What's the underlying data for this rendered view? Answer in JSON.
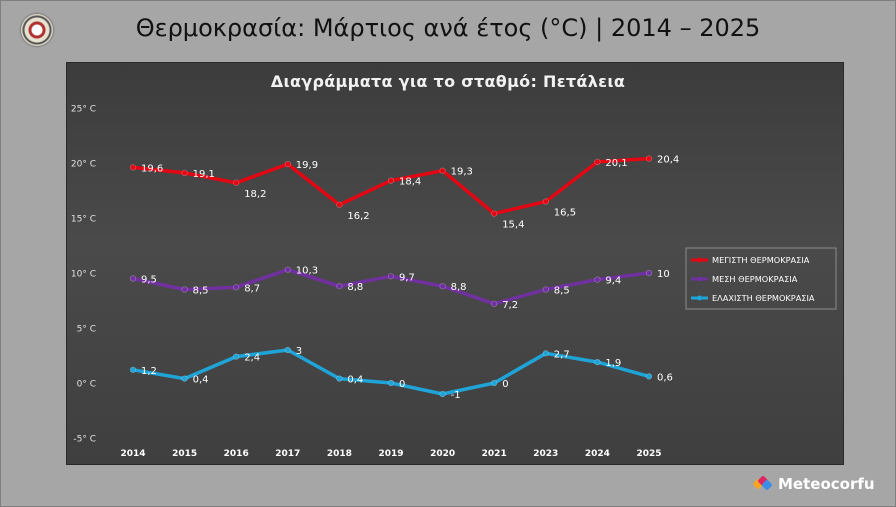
{
  "page": {
    "title": "Θερμοκρασία: Μάρτιος ανά έτος (°C) | 2014 – 2025",
    "brand": "Meteocorfu"
  },
  "colors": {
    "page_bg": "#a6a6a6",
    "plot_bg": "#404040",
    "max": "#e30613",
    "mean": "#7030a0",
    "min": "#1fa4d8"
  },
  "chart_data": {
    "type": "line",
    "title": "Διαγράμματα για το σταθμό: Πετάλεια",
    "categories": [
      "2014",
      "2015",
      "2016",
      "2017",
      "2018",
      "2019",
      "2020",
      "2021",
      "2023",
      "2024",
      "2025"
    ],
    "y_ticks": [
      "25° C",
      "20° C",
      "15° C",
      "10° C",
      "5° C",
      "0° C",
      "-5° C"
    ],
    "ylim": [
      -5,
      25
    ],
    "grid": false,
    "legend_position": "right",
    "series": [
      {
        "name": "ΜΕΓΙΣΤΗ ΘΕΡΜΟΚΡΑΣΙΑ",
        "color": "#e30613",
        "values": [
          19.6,
          19.1,
          18.2,
          19.9,
          16.2,
          18.4,
          19.3,
          15.4,
          16.5,
          20.1,
          20.4
        ],
        "labels": [
          "19,6",
          "19,1",
          "18,2",
          "19,9",
          "16,2",
          "18,4",
          "19,3",
          "15,4",
          "16,5",
          "20,1",
          "20,4"
        ]
      },
      {
        "name": "ΜΕΣΗ ΘΕΡΜΟΚΡΑΣΙΑ",
        "color": "#7030a0",
        "values": [
          9.5,
          8.5,
          8.7,
          10.3,
          8.8,
          9.7,
          8.8,
          7.2,
          8.5,
          9.4,
          10
        ],
        "labels": [
          "9,5",
          "8,5",
          "8,7",
          "10,3",
          "8,8",
          "9,7",
          "8,8",
          "7,2",
          "8,5",
          "9,4",
          "10"
        ]
      },
      {
        "name": "ΕΛΑΧΙΣΤΗ ΘΕΡΜΟΚΡΑΣΙΑ",
        "color": "#1fa4d8",
        "values": [
          1.2,
          0.4,
          2.4,
          3,
          0.4,
          0,
          -1,
          0,
          2.7,
          1.9,
          0.6
        ],
        "labels": [
          "1,2",
          "0,4",
          "2,4",
          "3",
          "0,4",
          "0",
          "-1",
          "0",
          "2,7",
          "1,9",
          "0,6"
        ]
      }
    ]
  }
}
